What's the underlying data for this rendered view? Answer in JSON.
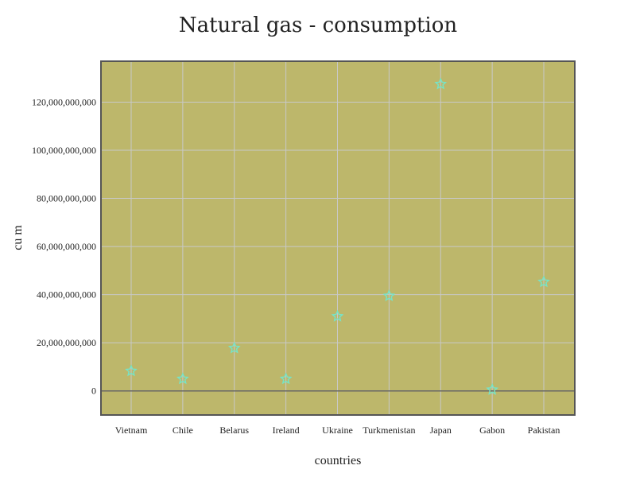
{
  "chart_data": {
    "type": "scatter",
    "title": "Natural gas - consumption",
    "xlabel": "countries",
    "ylabel": "cu m",
    "categories": [
      "Vietnam",
      "Chile",
      "Belarus",
      "Ireland",
      "Ukraine",
      "Turkmenistan",
      "Japan",
      "Gabon",
      "Pakistan"
    ],
    "series": [
      {
        "values": [
          8300000000,
          5000000000,
          17800000000,
          5000000000,
          31000000000,
          39500000000,
          127500000000,
          500000000,
          45300000000
        ]
      }
    ],
    "ylim": [
      -10000000000,
      137000000000
    ],
    "yticks": [
      0,
      20000000000,
      40000000000,
      60000000000,
      80000000000,
      100000000000,
      120000000000
    ],
    "ytick_labels": [
      "0",
      "20,000,000,000",
      "40,000,000,000",
      "60,000,000,000",
      "80,000,000,000",
      "100,000,000,000",
      "120,000,000,000"
    ],
    "grid": true,
    "legend": "none",
    "marker": "star-outline",
    "colors": {
      "plot_background": "#bdb76b",
      "marker": "#76e4c8",
      "grid": "#c8c8c8",
      "frame": "#555555",
      "zero_line": "#666666"
    }
  }
}
